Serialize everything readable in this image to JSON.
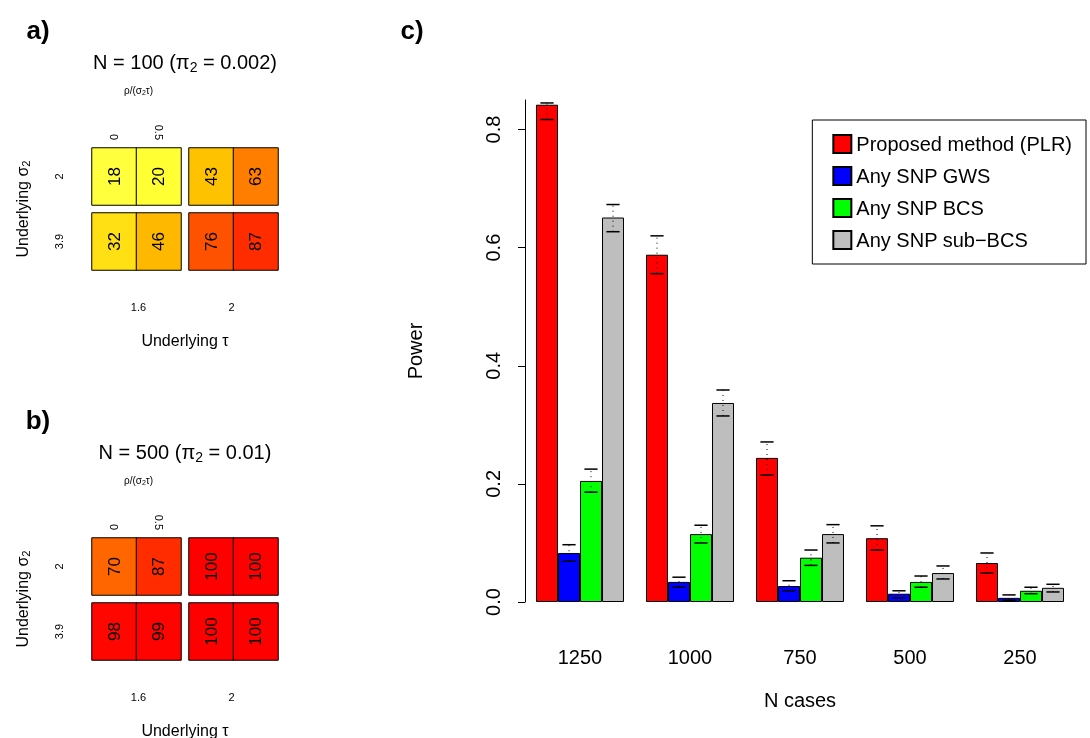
{
  "chart_data": [
    {
      "type": "heatmap",
      "title": "N = 100 (π$_{2}$ = 0.002)",
      "x2label": "ρ/(σ$_{2}$τ)",
      "xlabel": "Underlying τ",
      "ylabel": "Underlying σ$_{2}$",
      "categories": [
        "0",
        "0.5",
        null,
        null
      ],
      "y_categories": [
        "2",
        "3.9"
      ],
      "cells": [
        [
          18,
          20,
          43,
          63
        ],
        [
          32,
          46,
          76,
          87
        ]
      ],
      "data_labels": true,
      "annotations": [
        "a)",
        "1.6",
        "2"
      ]
    },
    {
      "type": "heatmap",
      "title": "N = 500 (π$_{2}$ = 0.01)",
      "x2label": "ρ/(σ$_{2}$τ)",
      "xlabel": "Underlying τ",
      "ylabel": "Underlying σ$_{2}$",
      "categories": [
        "0",
        "0.5",
        null,
        null
      ],
      "y_categories": [
        "2",
        "3.9"
      ],
      "cells": [
        [
          70,
          87,
          100,
          100
        ],
        [
          98,
          99,
          100,
          100
        ]
      ],
      "data_labels": true,
      "annotations": [
        "b)",
        "1.6",
        "2"
      ]
    },
    {
      "type": "bar",
      "xlabel": "N cases",
      "ylabel": "Power",
      "categories": [
        "1250",
        "1000",
        "750",
        "500",
        "250"
      ],
      "ylim": [
        0,
        0.85
      ],
      "yticks": [
        {
          "value": 0,
          "label": "0.0"
        },
        0.2,
        0.4,
        0.6,
        0.8
      ],
      "grid": false,
      "legend": "top right",
      "series": [
        {
          "name": "Proposed method (PLR)",
          "color": "#ff0000",
          "values": [
            0.842,
            0.588,
            0.244,
            0.108,
            0.066
          ],
          "errors": [
            [
              0.817,
              0.845
            ],
            [
              0.556,
              0.62
            ],
            [
              0.215,
              0.271
            ],
            [
              0.088,
              0.129
            ],
            [
              0.049,
              0.083
            ]
          ]
        },
        {
          "name": "Any SNP GWS",
          "color": "#0000ff",
          "values": [
            0.083,
            0.034,
            0.027,
            0.014,
            0.007
          ],
          "errors": [
            [
              0.069,
              0.097
            ],
            [
              0.025,
              0.042
            ],
            [
              0.019,
              0.036
            ],
            [
              0.007,
              0.019
            ],
            [
              0.003,
              0.012
            ]
          ]
        },
        {
          "name": "Any SNP BCS",
          "color": "#00ff00",
          "values": [
            0.205,
            0.115,
            0.075,
            0.034,
            0.019
          ],
          "errors": [
            [
              0.186,
              0.225
            ],
            [
              0.1,
              0.13
            ],
            [
              0.062,
              0.088
            ],
            [
              0.025,
              0.044
            ],
            [
              0.014,
              0.025
            ]
          ]
        },
        {
          "name": "Any SNP sub−BCS",
          "color": "#bebebe",
          "values": [
            0.651,
            0.337,
            0.115,
            0.049,
            0.024
          ],
          "errors": [
            [
              0.627,
              0.673
            ],
            [
              0.315,
              0.359
            ],
            [
              0.1,
              0.131
            ],
            [
              0.039,
              0.061
            ],
            [
              0.017,
              0.03
            ]
          ]
        }
      ],
      "annotations": [
        "c)"
      ]
    }
  ]
}
